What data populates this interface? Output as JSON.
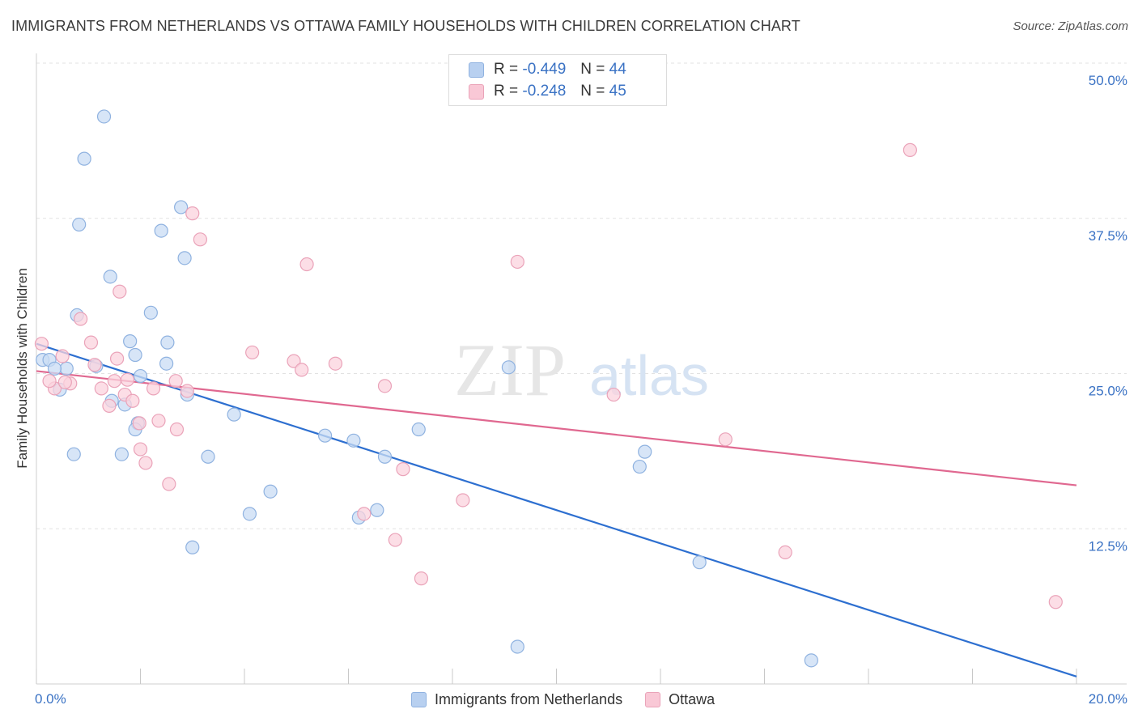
{
  "title": "IMMIGRANTS FROM NETHERLANDS VS OTTAWA FAMILY HOUSEHOLDS WITH CHILDREN CORRELATION CHART",
  "source": "Source: ZipAtlas.com",
  "watermark": {
    "part1": "ZIP",
    "part2": "atlas"
  },
  "legend_top": {
    "rows": [
      {
        "r_label": "R =",
        "r_value": "-0.449",
        "n_label": "N =",
        "n_value": "44",
        "fill": "#b8d0f0",
        "stroke": "#8fb2e0"
      },
      {
        "r_label": "R =",
        "r_value": "-0.248",
        "n_label": "N =",
        "n_value": "45",
        "fill": "#f9c8d6",
        "stroke": "#eaa3b9"
      }
    ]
  },
  "legend_bottom": [
    {
      "label": "Immigrants from Netherlands",
      "fill": "#b8d0f0",
      "stroke": "#8fb2e0"
    },
    {
      "label": "Ottawa",
      "fill": "#f9c8d6",
      "stroke": "#eaa3b9"
    }
  ],
  "chart_data": {
    "type": "scatter",
    "xlabel": "",
    "ylabel": "Family Households with Children",
    "xlim": [
      0,
      20
    ],
    "ylim": [
      0,
      50
    ],
    "x_tick_labels": [
      "0.0%",
      "20.0%"
    ],
    "y_ticks": [
      12.5,
      25.0,
      37.5,
      50.0
    ],
    "y_tick_labels": [
      "12.5%",
      "25.0%",
      "37.5%",
      "50.0%"
    ],
    "grid": true,
    "legend_position": "top-center",
    "series": [
      {
        "name": "Immigrants from Netherlands",
        "color": "#8fb2e0",
        "fill": "#c9dcf4",
        "trend_color": "#2d6fd0",
        "trend": {
          "x": [
            0,
            20
          ],
          "y": [
            27.4,
            0.6
          ]
        },
        "x": [
          0.12,
          0.25,
          0.45,
          0.58,
          0.78,
          0.82,
          0.92,
          1.15,
          1.45,
          1.8,
          1.9,
          2.0,
          2.2,
          2.4,
          2.5,
          2.9,
          1.3,
          0.72,
          1.7,
          1.42,
          2.78,
          2.85,
          2.52,
          3.0,
          3.3,
          3.8,
          4.5,
          4.1,
          5.55,
          6.1,
          6.2,
          6.55,
          7.35,
          6.7,
          9.25,
          11.6,
          11.7,
          12.75,
          9.08,
          14.9,
          0.35,
          1.64,
          1.95,
          1.9
        ],
        "y": [
          26.1,
          26.1,
          23.7,
          25.4,
          29.7,
          37.0,
          42.3,
          25.6,
          22.8,
          27.6,
          26.5,
          24.8,
          29.9,
          36.5,
          25.8,
          23.3,
          45.7,
          18.5,
          22.5,
          32.8,
          38.4,
          34.3,
          27.5,
          11.0,
          18.3,
          21.7,
          15.5,
          13.7,
          20.0,
          19.6,
          13.4,
          14.0,
          20.5,
          18.3,
          3.0,
          17.5,
          18.7,
          9.8,
          25.5,
          1.9,
          25.4,
          18.5,
          21.0,
          20.5
        ]
      },
      {
        "name": "Ottawa",
        "color": "#eaa3b9",
        "fill": "#fbd3de",
        "trend_color": "#e06890",
        "trend": {
          "x": [
            0,
            20
          ],
          "y": [
            25.2,
            16.0
          ]
        },
        "x": [
          0.1,
          0.35,
          0.5,
          0.65,
          0.85,
          1.05,
          1.12,
          1.25,
          1.4,
          1.5,
          1.6,
          1.7,
          1.85,
          2.0,
          2.1,
          2.25,
          2.35,
          2.55,
          2.7,
          2.9,
          3.0,
          3.15,
          4.15,
          4.95,
          5.1,
          5.2,
          5.75,
          6.3,
          6.7,
          6.9,
          7.05,
          7.4,
          8.2,
          9.25,
          11.1,
          13.25,
          14.4,
          16.8,
          19.6,
          0.25,
          2.68,
          1.55,
          1.75,
          1.98,
          0.55
        ],
        "y": [
          27.4,
          23.8,
          26.4,
          24.2,
          29.4,
          27.5,
          25.7,
          23.8,
          22.4,
          24.4,
          31.6,
          23.3,
          22.8,
          18.9,
          17.8,
          23.8,
          21.2,
          16.1,
          20.5,
          23.6,
          37.9,
          35.8,
          26.7,
          26.0,
          25.3,
          33.8,
          25.8,
          13.7,
          24.0,
          11.6,
          17.3,
          8.5,
          14.8,
          34.0,
          23.3,
          19.7,
          10.6,
          43.0,
          6.6,
          24.4,
          24.4,
          26.2,
          24.5,
          21.0,
          24.3
        ]
      }
    ]
  }
}
